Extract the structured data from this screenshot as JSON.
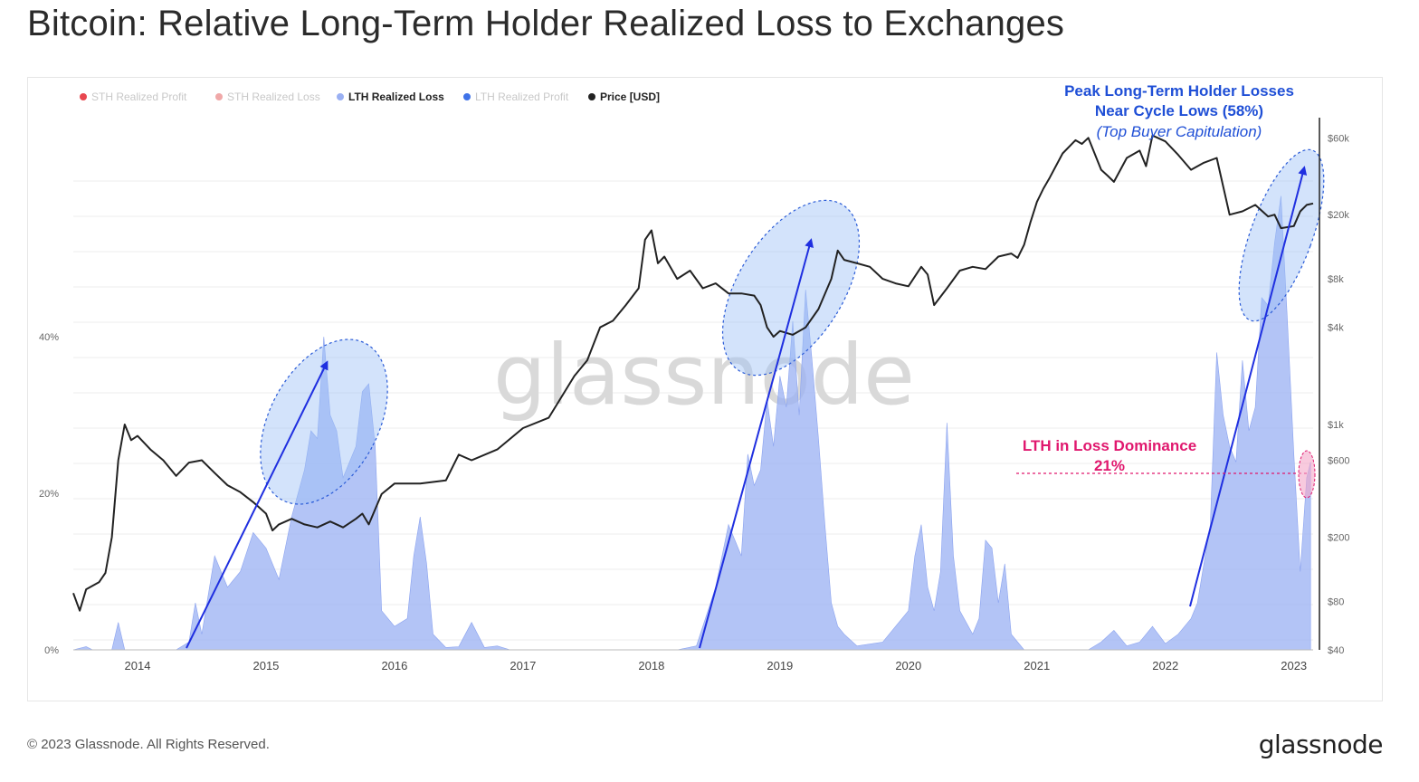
{
  "title": "Bitcoin: Relative Long-Term Holder Realized Loss to Exchanges",
  "footer": {
    "copyright": "© 2023 Glassnode. All Rights Reserved.",
    "brand": "glassnode"
  },
  "watermark": "glassnode",
  "colors": {
    "lth_fill": "#8fa6f0",
    "price_line": "#222222",
    "arrow": "#1f2fe0",
    "ellipse_fill": "#9ec0f7",
    "ellipse_stroke": "#2a5bd7",
    "annotation_blue": "#1f4fd6",
    "annotation_pink": "#e0186e",
    "grid": "#eeeeee"
  },
  "legend": [
    {
      "label": "STH Realized Profit",
      "color": "#e8474f",
      "active": false
    },
    {
      "label": "STH Realized Loss",
      "color": "#f0a8a8",
      "active": false
    },
    {
      "label": "LTH Realized Loss",
      "color": "#9ab0f3",
      "active": true
    },
    {
      "label": "LTH Realized Profit",
      "color": "#3f73e8",
      "active": false
    },
    {
      "label": "Price [USD]",
      "color": "#222222",
      "active": true
    }
  ],
  "annotations": {
    "peak_line1": "Peak Long-Term Holder Losses",
    "peak_line2": "Near Cycle Lows (58%)",
    "peak_line3": "(Top Buyer Capitulation)",
    "dominance_line1": "LTH in Loss Dominance",
    "dominance_line2": "21%"
  },
  "chart_data": {
    "type": "area",
    "title": "Bitcoin: Relative Long-Term Holder Realized Loss to Exchanges",
    "x_ticks": [
      "2014",
      "2015",
      "2016",
      "2017",
      "2018",
      "2019",
      "2020",
      "2021",
      "2022",
      "2023"
    ],
    "x_range": [
      2013.5,
      2023.15
    ],
    "y_left": {
      "ticks": [
        "0%",
        "20%",
        "40%"
      ],
      "tick_values": [
        0,
        20,
        40
      ],
      "range": [
        0,
        68
      ]
    },
    "y_right": {
      "scale": "log",
      "ticks": [
        "$40",
        "$80",
        "$200",
        "$600",
        "$1k",
        "$4k",
        "$8k",
        "$20k",
        "$60k"
      ],
      "tick_values": [
        40,
        80,
        200,
        600,
        1000,
        4000,
        8000,
        20000,
        60000
      ]
    },
    "series": [
      {
        "name": "LTH Realized Loss",
        "axis": "left",
        "x": [
          2013.5,
          2013.6,
          2013.65,
          2013.8,
          2013.85,
          2013.9,
          2014.1,
          2014.3,
          2014.4,
          2014.45,
          2014.5,
          2014.6,
          2014.7,
          2014.8,
          2014.9,
          2015.0,
          2015.1,
          2015.2,
          2015.3,
          2015.35,
          2015.4,
          2015.45,
          2015.5,
          2015.55,
          2015.6,
          2015.7,
          2015.75,
          2015.8,
          2015.85,
          2015.9,
          2016.0,
          2016.1,
          2016.15,
          2016.2,
          2016.25,
          2016.3,
          2016.4,
          2016.5,
          2016.6,
          2016.7,
          2016.8,
          2016.9,
          2017.0,
          2017.5,
          2018.0,
          2018.2,
          2018.35,
          2018.4,
          2018.5,
          2018.6,
          2018.65,
          2018.7,
          2018.75,
          2018.8,
          2018.85,
          2018.9,
          2018.95,
          2019.0,
          2019.05,
          2019.1,
          2019.15,
          2019.2,
          2019.25,
          2019.3,
          2019.35,
          2019.4,
          2019.45,
          2019.5,
          2019.6,
          2019.8,
          2019.9,
          2020.0,
          2020.05,
          2020.1,
          2020.15,
          2020.2,
          2020.25,
          2020.3,
          2020.35,
          2020.4,
          2020.5,
          2020.55,
          2020.6,
          2020.65,
          2020.7,
          2020.75,
          2020.8,
          2020.9,
          2021.0,
          2021.4,
          2021.5,
          2021.6,
          2021.7,
          2021.8,
          2021.9,
          2022.0,
          2022.1,
          2022.2,
          2022.25,
          2022.3,
          2022.35,
          2022.4,
          2022.45,
          2022.5,
          2022.55,
          2022.6,
          2022.65,
          2022.7,
          2022.75,
          2022.8,
          2022.85,
          2022.9,
          2022.95,
          2023.0,
          2023.05,
          2023.1,
          2023.13
        ],
        "values": [
          0,
          0.4,
          0,
          0,
          3.5,
          0,
          0,
          0,
          1,
          6,
          2,
          12,
          8,
          10,
          15,
          13,
          9,
          17,
          23,
          28,
          27,
          40,
          30,
          28,
          22,
          26,
          33,
          34,
          26,
          5,
          3,
          4,
          12,
          17,
          11,
          2,
          0.3,
          0.4,
          3.5,
          0.3,
          0.5,
          0,
          0,
          0,
          0,
          0,
          0.5,
          3,
          8,
          16,
          14,
          12,
          25,
          21,
          23,
          32,
          26,
          35,
          31,
          42,
          30,
          46,
          37,
          27,
          16,
          6,
          3,
          2,
          0.5,
          1,
          3,
          5,
          12,
          16,
          8,
          5,
          10,
          29,
          12,
          5,
          2,
          4,
          14,
          13,
          6,
          11,
          2,
          0,
          0,
          0,
          1,
          2.5,
          0.5,
          1,
          3,
          0.8,
          2,
          4,
          6,
          11,
          16,
          38,
          30,
          26,
          24,
          37,
          28,
          31,
          45,
          44,
          52,
          58,
          42,
          25,
          10,
          22,
          24
        ]
      },
      {
        "name": "Price [USD]",
        "axis": "right",
        "x": [
          2013.5,
          2013.55,
          2013.6,
          2013.7,
          2013.75,
          2013.8,
          2013.85,
          2013.9,
          2013.95,
          2014.0,
          2014.1,
          2014.2,
          2014.3,
          2014.4,
          2014.5,
          2014.6,
          2014.7,
          2014.8,
          2014.9,
          2015.0,
          2015.05,
          2015.1,
          2015.2,
          2015.3,
          2015.4,
          2015.5,
          2015.6,
          2015.7,
          2015.75,
          2015.8,
          2015.9,
          2016.0,
          2016.2,
          2016.4,
          2016.5,
          2016.6,
          2016.8,
          2017.0,
          2017.2,
          2017.4,
          2017.5,
          2017.6,
          2017.7,
          2017.8,
          2017.9,
          2017.95,
          2018.0,
          2018.05,
          2018.1,
          2018.2,
          2018.3,
          2018.4,
          2018.5,
          2018.6,
          2018.7,
          2018.8,
          2018.85,
          2018.9,
          2018.95,
          2019.0,
          2019.1,
          2019.2,
          2019.3,
          2019.4,
          2019.45,
          2019.5,
          2019.6,
          2019.7,
          2019.8,
          2019.9,
          2020.0,
          2020.1,
          2020.15,
          2020.2,
          2020.3,
          2020.4,
          2020.5,
          2020.6,
          2020.7,
          2020.8,
          2020.85,
          2020.9,
          2020.95,
          2021.0,
          2021.05,
          2021.1,
          2021.2,
          2021.3,
          2021.35,
          2021.4,
          2021.5,
          2021.55,
          2021.6,
          2021.7,
          2021.8,
          2021.85,
          2021.9,
          2022.0,
          2022.1,
          2022.2,
          2022.3,
          2022.4,
          2022.45,
          2022.5,
          2022.6,
          2022.7,
          2022.8,
          2022.85,
          2022.9,
          2023.0,
          2023.05,
          2023.1,
          2023.15
        ],
        "values": [
          90,
          70,
          95,
          105,
          120,
          200,
          600,
          1000,
          800,
          850,
          700,
          600,
          480,
          580,
          600,
          500,
          420,
          380,
          330,
          280,
          220,
          240,
          260,
          240,
          230,
          250,
          230,
          260,
          280,
          240,
          370,
          430,
          430,
          450,
          650,
          600,
          700,
          950,
          1100,
          2000,
          2500,
          4000,
          4400,
          5500,
          7000,
          14000,
          16000,
          10000,
          11000,
          8000,
          9000,
          7000,
          7500,
          6500,
          6500,
          6300,
          5500,
          4000,
          3500,
          3800,
          3600,
          4000,
          5200,
          8000,
          12000,
          10500,
          10000,
          9500,
          8000,
          7500,
          7200,
          9500,
          8500,
          5500,
          7000,
          9000,
          9500,
          9200,
          11000,
          11500,
          10800,
          13000,
          18000,
          24000,
          29000,
          34000,
          48000,
          58000,
          55000,
          60000,
          38000,
          35000,
          32000,
          45000,
          50000,
          40000,
          62000,
          57000,
          47000,
          38000,
          42000,
          45000,
          30000,
          20000,
          21000,
          23000,
          19500,
          20000,
          16500,
          17000,
          21000,
          23000,
          23500
        ]
      }
    ],
    "reference_line": {
      "label": "LTH in Loss Dominance 21%",
      "value": 21
    }
  }
}
